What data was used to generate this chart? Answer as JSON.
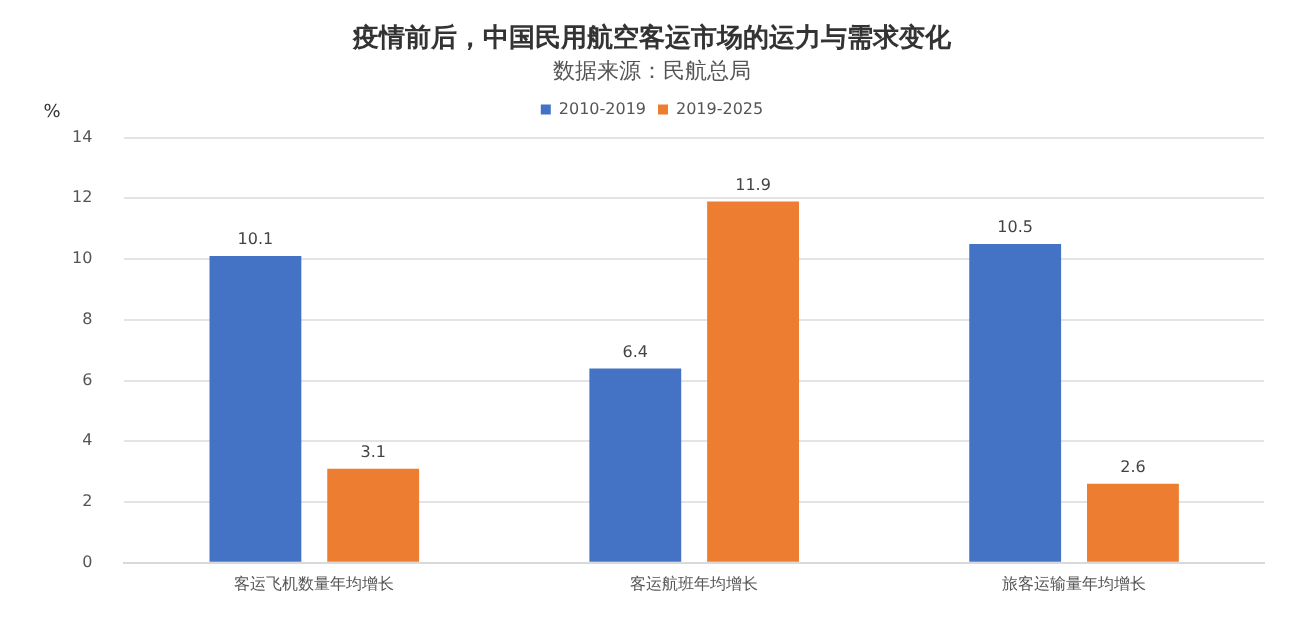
{
  "chart_data": {
    "type": "bar",
    "title": "疫情前后，中国民用航空客运市场的运力与需求变化",
    "subtitle": "数据来源：民航总局",
    "ylabel": "%",
    "categories": [
      "客运飞机数量年均增长",
      "客运航班年均增长",
      "旅客运输量年均增长"
    ],
    "series": [
      {
        "name": "2010-2019",
        "color": "#4472c4",
        "values": [
          10.1,
          6.4,
          10.5
        ]
      },
      {
        "name": "2019-2025",
        "color": "#ed7d31",
        "values": [
          3.1,
          11.9,
          2.6
        ]
      }
    ],
    "ylim": [
      0,
      14
    ],
    "yticks": [
      0,
      2,
      4,
      6,
      8,
      10,
      12,
      14
    ],
    "grid": "y",
    "legend": "top",
    "data_labels": true
  }
}
